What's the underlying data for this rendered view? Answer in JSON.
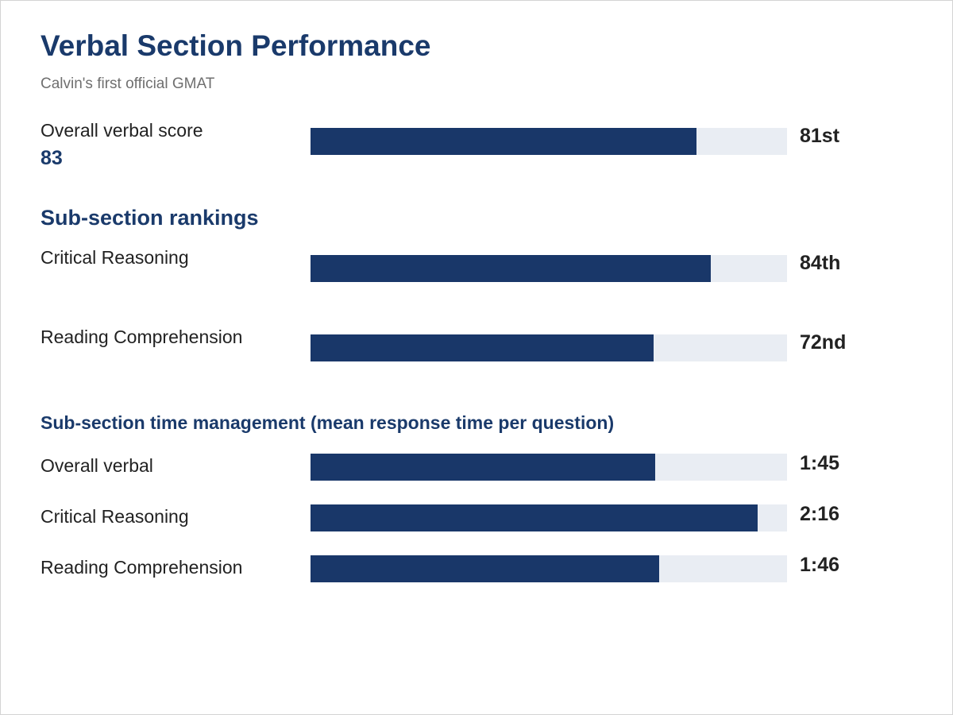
{
  "title": "Verbal Section Performance",
  "subtitle": "Calvin's first official GMAT",
  "colors": {
    "bar_fill": "#193769",
    "bar_track": "#e9edf3",
    "heading": "#1a3a6b"
  },
  "chart_data": [
    {
      "type": "bar",
      "orientation": "horizontal",
      "title": "",
      "categories": [
        "Overall verbal score"
      ],
      "values": [
        81
      ],
      "value_labels": [
        "81st"
      ],
      "score_label": "83",
      "xlim": [
        0,
        100
      ]
    },
    {
      "type": "bar",
      "orientation": "horizontal",
      "title": "Sub-section rankings",
      "categories": [
        "Critical Reasoning",
        "Reading Comprehension"
      ],
      "values": [
        84,
        72
      ],
      "value_labels": [
        "84th",
        "72nd"
      ],
      "xlim": [
        0,
        100
      ]
    },
    {
      "type": "bar",
      "orientation": "horizontal",
      "title": "Sub-section time management (mean response time per question)",
      "categories": [
        "Overall verbal",
        "Critical Reasoning",
        "Reading Comprehension"
      ],
      "values": [
        "1:45",
        "2:16",
        "1:46"
      ],
      "value_labels": [
        "1:45",
        "2:16",
        "1:46"
      ],
      "xlim": [
        "0:00",
        "2:25"
      ]
    }
  ]
}
